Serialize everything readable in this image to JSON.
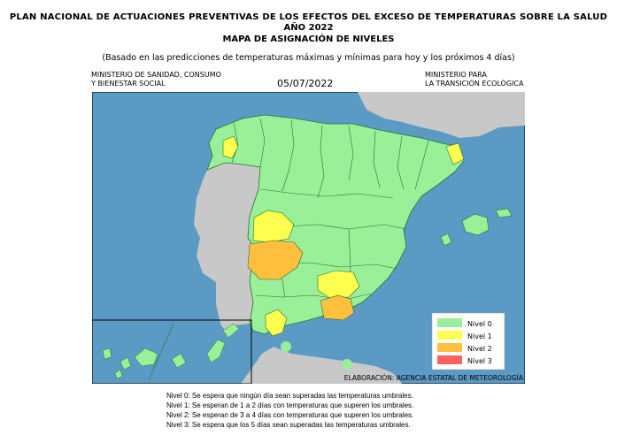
{
  "header": {
    "title": "PLAN NACIONAL DE ACTUACIONES PREVENTIVAS DE LOS EFECTOS DEL EXCESO DE TEMPERATURAS SOBRE LA SALUD",
    "year": "AÑO 2022",
    "subtitle": "MAPA DE ASIGNACIÓN DE NIVELES",
    "note": "(Basado en las predicciones de temperaturas máximas y mínimas para hoy y los próximos 4 días)",
    "date": "05/07/2022"
  },
  "ministry_left": [
    "MINISTERIO DE SANIDAD, CONSUMO",
    "Y BIENESTAR SOCIAL"
  ],
  "ministry_right": [
    "MINISTERIO PARA",
    "LA TRANSICIÓN ECOLÓGICA"
  ],
  "map": {
    "colors": {
      "sea": "#5b9ac4",
      "land_other": "#c8c8c8",
      "nivel0": "#99f099",
      "nivel1": "#ffff50",
      "nivel2": "#ffc040",
      "nivel3": "#ff6060",
      "border": "#2c6e2c"
    },
    "credit": "ELABORACIÓN: AGENCIA ESTATAL DE METEOROLOGÍA"
  },
  "legend": {
    "items": [
      {
        "label": "Nivel 0",
        "color": "#99f099"
      },
      {
        "label": "Nivel 1",
        "color": "#ffff50"
      },
      {
        "label": "Nivel 2",
        "color": "#ffc040"
      },
      {
        "label": "Nivel 3",
        "color": "#ff6060"
      }
    ]
  },
  "footnotes": [
    "Nivel 0: Se espera que ningún día sean superadas las temperaturas umbrales.",
    "Nivel 1: Se esperan de 1 a 2 días con temperaturas que superen los umbrales.",
    "Nivel 2: Se esperan de 3 a 4 días con temperaturas que superen los umbrales.",
    "Nivel 3: Se espera que los 5 días sean superadas las temperaturas umbrales."
  ]
}
